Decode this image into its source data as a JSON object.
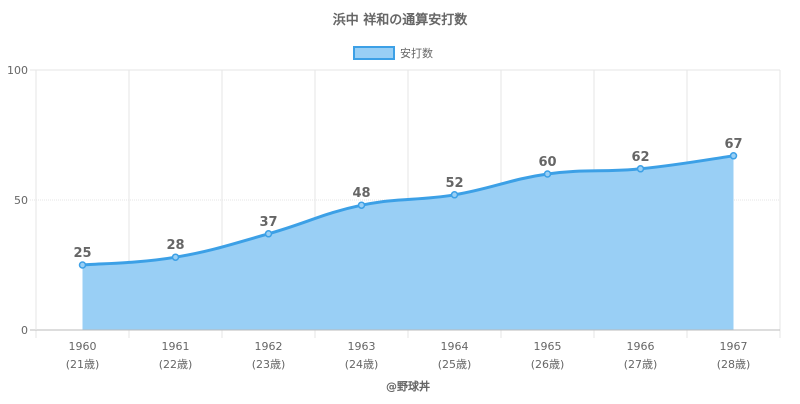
{
  "chart_data": {
    "type": "area",
    "title": "浜中 祥和の通算安打数",
    "legend": {
      "label": "安打数",
      "placement": "top-center"
    },
    "categories": [
      "1960",
      "1961",
      "1962",
      "1963",
      "1964",
      "1965",
      "1966",
      "1967"
    ],
    "age_labels": [
      "(21歳)",
      "(22歳)",
      "(23歳)",
      "(24歳)",
      "(25歳)",
      "(26歳)",
      "(27歳)",
      "(28歳)"
    ],
    "series": [
      {
        "name": "安打数",
        "values": [
          25,
          28,
          37,
          48,
          52,
          60,
          62,
          67
        ]
      }
    ],
    "y_ticks": [
      "0",
      "50",
      "100"
    ],
    "ylim": [
      0,
      100
    ],
    "grid": true,
    "colors": {
      "line": "#3ca0e6",
      "fill": "#99cff5",
      "grid": "#e6e6e6",
      "axis": "#bbbbbb",
      "text": "#666666"
    }
  },
  "footer": {
    "credit": "@野球丼"
  }
}
